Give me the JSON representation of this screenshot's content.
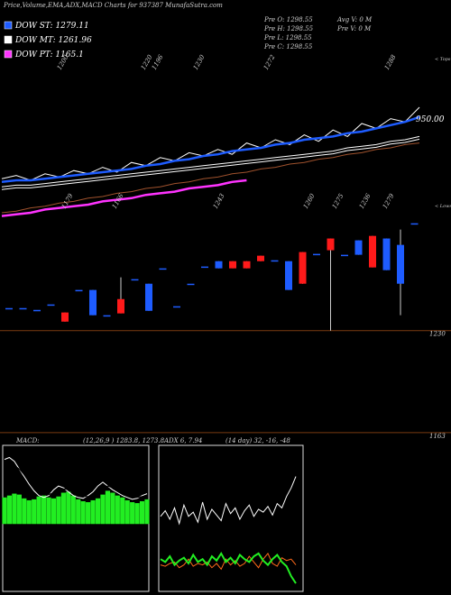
{
  "chart_data": [
    {
      "type": "line",
      "title": "Price,Volume,EMA,ADX,MACD Charts for 937387 MunafaSutra.com",
      "info": [
        "Pre O: 1298.55",
        "Pre H: 1298.55",
        "Pre L: 1298.55",
        "Pre C: 1298.55",
        "Avg V: 0 M",
        "Pre V: 0 M"
      ],
      "tops": [
        "1200",
        "1220",
        "1196",
        "1230",
        "1272",
        "1288"
      ],
      "tops_label": "< Tops",
      "lows": [
        "1179",
        "1166",
        "1243",
        "1260",
        "1275",
        "1236",
        "1279"
      ],
      "lows_label": "< Lows",
      "level_label": "950.00",
      "ylim": [
        0,
        100
      ],
      "series": [
        {
          "color": "#ffffff",
          "values": [
            26,
            28,
            25,
            29,
            27,
            31,
            29,
            33,
            30,
            36,
            34,
            39,
            37,
            42,
            40,
            44,
            41,
            48,
            45,
            50,
            47,
            53,
            49,
            56,
            52,
            60,
            57,
            63,
            61,
            70
          ]
        },
        {
          "name": "DOW ST: 1279.11",
          "color": "#1e5cff",
          "values": [
            24,
            25,
            25,
            26,
            27,
            28,
            29,
            30,
            31,
            32,
            34,
            35,
            37,
            38,
            40,
            41,
            43,
            44,
            45,
            47,
            48,
            50,
            51,
            52,
            54,
            55,
            57,
            59,
            61,
            64
          ]
        },
        {
          "name": "DOW MT: 1261.96",
          "color": "#ffffff",
          "values": [
            21,
            22,
            22,
            23,
            24,
            25,
            26,
            27,
            28,
            29,
            30,
            31,
            32,
            33,
            34,
            35,
            36,
            37,
            38,
            39,
            40,
            41,
            42,
            43,
            45,
            46,
            47,
            49,
            50,
            52
          ]
        },
        {
          "name": "DOW PT: 1165.1",
          "color": "#ff33ff",
          "values": [
            3,
            4,
            5,
            7,
            8,
            9,
            10,
            12,
            13,
            14,
            16,
            17,
            18,
            20,
            21,
            22,
            24,
            25,
            null,
            null,
            null,
            null,
            null,
            null,
            null,
            null,
            null,
            null,
            null,
            null
          ]
        },
        {
          "color": "#a0522d",
          "values": [
            5,
            6,
            8,
            9,
            11,
            12,
            14,
            15,
            17,
            18,
            20,
            21,
            23,
            24,
            26,
            27,
            29,
            30,
            32,
            33,
            35,
            36,
            38,
            39,
            41,
            42,
            44,
            45,
            47,
            48
          ]
        }
      ]
    },
    {
      "type": "candlestick",
      "ylim": [
        1157,
        1308
      ],
      "yticks": [
        1230,
        1163
      ],
      "up_color": "#1e5cff",
      "down_color": "#ff1a1a",
      "level_color": "#7a3b10",
      "open": [
        1244.8,
        1244.8,
        1243.6,
        1247.2,
        1241.9,
        1256.7,
        1240.1,
        1240.1,
        1250.7,
        1263.8,
        1243.0,
        1270.9,
        1246.0,
        1260.8,
        1272.1,
        1270.9,
        1275.6,
        1275.6,
        1279.2,
        1276.2,
        1256.7,
        1281.6,
        1280.4,
        1290.5,
        1279.8,
        1279.8,
        1292.2,
        1269.7,
        1260.8,
        1300.5
      ],
      "high": [
        1244.8,
        1244.8,
        1243.6,
        1247.2,
        1241.9,
        1256.7,
        1256.7,
        1240.1,
        1265.0,
        1263.8,
        1260.8,
        1270.9,
        1246.0,
        1260.8,
        1272.1,
        1275.6,
        1275.6,
        1275.6,
        1279.2,
        1276.2,
        1275.6,
        1281.6,
        1280.4,
        1290.5,
        1279.8,
        1289.3,
        1292.2,
        1290.5,
        1296.4,
        1300.5
      ],
      "low": [
        1244.8,
        1244.8,
        1243.6,
        1247.2,
        1235.9,
        1256.7,
        1240.1,
        1240.1,
        1241.3,
        1263.8,
        1243.0,
        1270.9,
        1246.0,
        1260.8,
        1272.1,
        1270.9,
        1270.9,
        1270.9,
        1275.6,
        1276.2,
        1256.7,
        1260.8,
        1280.4,
        1230,
        1279.8,
        1279.8,
        1271.5,
        1269.7,
        1240.1,
        1300.5
      ],
      "close": [
        1244.8,
        1244.8,
        1243.6,
        1247.2,
        1235.9,
        1256.7,
        1256.7,
        1240.1,
        1241.3,
        1263.8,
        1260.8,
        1270.9,
        1246.0,
        1260.8,
        1272.1,
        1275.6,
        1270.9,
        1270.9,
        1275.6,
        1276.2,
        1275.6,
        1260.8,
        1280.4,
        1282.8,
        1279.8,
        1289.3,
        1271.5,
        1290.5,
        1286.3,
        1300.5
      ]
    },
    {
      "type": "macd",
      "title": "MACD:",
      "subtitle": "(12,26,9 ) 1283.8, 1273.8",
      "ylim": [
        -70,
        80
      ],
      "histogram": {
        "color": "#22ee22",
        "values": [
          28,
          30,
          32,
          31,
          27,
          25,
          26,
          29,
          30,
          28,
          27,
          29,
          33,
          34,
          30,
          26,
          24,
          23,
          25,
          27,
          31,
          35,
          33,
          30,
          28,
          25,
          23,
          22,
          24,
          26
        ]
      },
      "series": [
        {
          "color": "#ffffff",
          "values": [
            68,
            70,
            66,
            58,
            50,
            42,
            35,
            30,
            28,
            30,
            36,
            40,
            38,
            34,
            30,
            28,
            27,
            30,
            34,
            40,
            44,
            40,
            36,
            33,
            30,
            28,
            26,
            27,
            30,
            32
          ]
        },
        {
          "color": "#000000",
          "values": [
            60,
            62,
            62,
            58,
            52,
            46,
            40,
            35,
            32,
            31,
            33,
            36,
            37,
            36,
            34,
            31,
            29,
            29,
            31,
            35,
            39,
            40,
            38,
            36,
            33,
            31,
            29,
            28,
            29,
            30
          ]
        }
      ]
    },
    {
      "type": "adx",
      "title": "ADX 6, 7.94",
      "subtitle": "(14 day) 32, -16, -48",
      "ylim": [
        0,
        100
      ],
      "series": [
        {
          "color": "#ffffff",
          "values": [
            52,
            56,
            50,
            58,
            47,
            60,
            52,
            55,
            48,
            62,
            50,
            57,
            53,
            49,
            61,
            54,
            58,
            50,
            56,
            60,
            52,
            57,
            55,
            59,
            53,
            61,
            58,
            66,
            72,
            80
          ]
        },
        {
          "color": "#ff6a1a",
          "values": [
            18,
            17,
            19,
            20,
            16,
            18,
            22,
            17,
            19,
            18,
            20,
            16,
            19,
            15,
            22,
            18,
            21,
            17,
            19,
            24,
            20,
            16,
            22,
            26,
            19,
            17,
            23,
            21,
            22,
            18
          ]
        },
        {
          "color": "#22ee22",
          "values": [
            22,
            20,
            24,
            18,
            21,
            23,
            19,
            25,
            20,
            22,
            18,
            24,
            21,
            26,
            20,
            23,
            19,
            25,
            22,
            20,
            24,
            26,
            21,
            18,
            22,
            25,
            20,
            17,
            10,
            5
          ]
        }
      ]
    }
  ]
}
